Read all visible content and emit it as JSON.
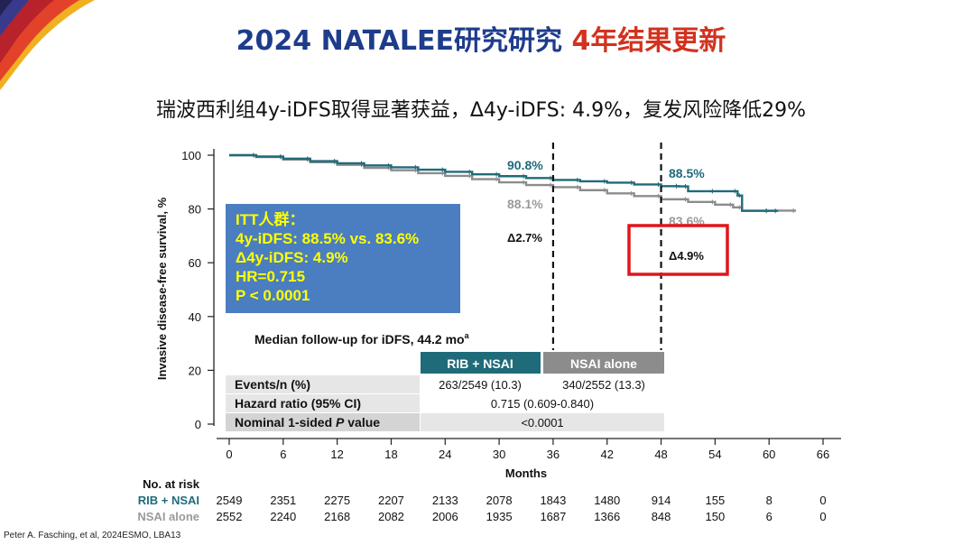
{
  "header": {
    "title_part1": "2024 NATALEE研究研究 ",
    "title_part2": "4年结果更新",
    "subtitle": "瑞波西利组4y-iDFS取得显著获益，Δ4y-iDFS: 4.9%，复发风险降低29%"
  },
  "itt_box": {
    "lines": [
      "ITT人群：",
      "4y-iDFS: 88.5% vs. 83.6%",
      "Δ4y-iDFS: 4.9%",
      "HR=0.715",
      "P < 0.0001"
    ]
  },
  "median_followup": {
    "text": "Median follow-up for iDFS, 44.2 mo",
    "superscript": "a"
  },
  "summary_table": {
    "columns": [
      "RIB + NSAI",
      "NSAI alone"
    ],
    "rows": [
      {
        "label": "Events/n (%)",
        "rib": "263/2549 (10.3)",
        "nsai": "340/2552 (13.3)"
      },
      {
        "label": "Hazard ratio (95% CI)",
        "combined": "0.715 (0.609-0.840)"
      },
      {
        "label_pre": "Nominal 1-sided ",
        "label_italic": "P",
        "label_post": " value",
        "combined": "<0.0001"
      }
    ]
  },
  "annotations": {
    "rib_36": "90.8%",
    "nsai_36": "88.1%",
    "diff_36": "Δ2.7%",
    "rib_48": "88.5%",
    "nsai_48": "83.6%",
    "diff_48": "Δ4.9%"
  },
  "chart_data": {
    "type": "line",
    "title": "",
    "xlabel": "Months",
    "ylabel": "Invasive disease-free survival, %",
    "xlim": [
      0,
      66
    ],
    "ylim": [
      0,
      100
    ],
    "x_ticks": [
      0,
      6,
      12,
      18,
      24,
      30,
      36,
      42,
      48,
      54,
      60,
      66
    ],
    "y_ticks": [
      0,
      20,
      40,
      60,
      80,
      100
    ],
    "reference_lines_x": [
      36,
      48
    ],
    "series": [
      {
        "name": "RIB + NSAI",
        "color": "#1f6b7a",
        "x": [
          0,
          3,
          6,
          9,
          12,
          15,
          18,
          21,
          24,
          27,
          30,
          33,
          36,
          39,
          42,
          45,
          48,
          50,
          51,
          54,
          56.5,
          57,
          60,
          61
        ],
        "y": [
          100,
          99.5,
          98.7,
          97.8,
          97.0,
          96.2,
          95.5,
          94.6,
          93.8,
          92.9,
          92.2,
          91.5,
          90.8,
          90.3,
          89.8,
          89.1,
          88.5,
          88.4,
          86.6,
          86.6,
          85.0,
          79.3,
          79.3,
          79.3
        ]
      },
      {
        "name": "NSAI alone",
        "color": "#8c8c8c",
        "x": [
          0,
          3,
          6,
          9,
          12,
          15,
          18,
          21,
          24,
          27,
          30,
          33,
          36,
          39,
          42,
          45,
          48,
          51,
          54,
          56,
          57,
          60,
          63
        ],
        "y": [
          100,
          99.3,
          98.4,
          97.4,
          96.4,
          95.3,
          94.4,
          93.3,
          92.3,
          91.1,
          89.9,
          88.9,
          88.1,
          87.0,
          85.8,
          84.8,
          83.6,
          82.6,
          81.6,
          80.6,
          79.4,
          79.4,
          79.4
        ]
      }
    ],
    "at_risk": {
      "title": "No. at risk",
      "groups": [
        {
          "name": "RIB + NSAI",
          "color": "#1f6b7a",
          "values": [
            "2549",
            "2351",
            "2275",
            "2207",
            "2133",
            "2078",
            "1843",
            "1480",
            "914",
            "155",
            "8",
            "0"
          ]
        },
        {
          "name": "NSAI alone",
          "color": "#9a9a9a",
          "values": [
            "2552",
            "2240",
            "2168",
            "2082",
            "2006",
            "1935",
            "1687",
            "1366",
            "848",
            "150",
            "6",
            "0"
          ]
        }
      ]
    }
  },
  "footer": {
    "citation": "Peter A. Fasching, et al, 2024ESMO, LBA13"
  }
}
